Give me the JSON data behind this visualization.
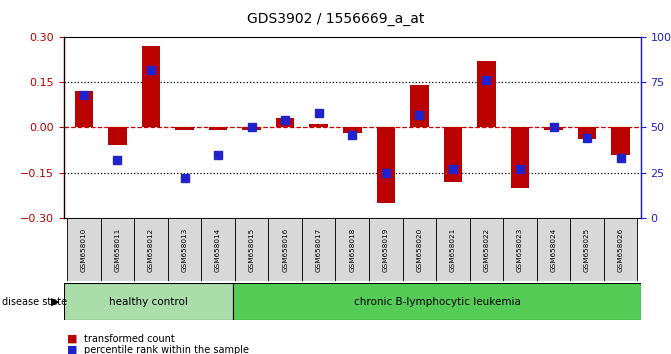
{
  "title": "GDS3902 / 1556669_a_at",
  "samples": [
    "GSM658010",
    "GSM658011",
    "GSM658012",
    "GSM658013",
    "GSM658014",
    "GSM658015",
    "GSM658016",
    "GSM658017",
    "GSM658018",
    "GSM658019",
    "GSM658020",
    "GSM658021",
    "GSM658022",
    "GSM658023",
    "GSM658024",
    "GSM658025",
    "GSM658026"
  ],
  "red_values": [
    0.12,
    -0.06,
    0.27,
    -0.01,
    -0.01,
    -0.01,
    0.03,
    0.01,
    -0.02,
    -0.25,
    0.14,
    -0.18,
    0.22,
    -0.2,
    -0.01,
    -0.04,
    -0.09
  ],
  "blue_values_pct": [
    68,
    32,
    82,
    22,
    35,
    50,
    54,
    58,
    46,
    25,
    57,
    27,
    76,
    27,
    50,
    44,
    33
  ],
  "ylim_left": [
    -0.3,
    0.3
  ],
  "ylim_right": [
    0,
    100
  ],
  "yticks_left": [
    -0.3,
    -0.15,
    0.0,
    0.15,
    0.3
  ],
  "yticks_right": [
    0,
    25,
    50,
    75,
    100
  ],
  "ytick_labels_right": [
    "0",
    "25",
    "50",
    "75",
    "100%"
  ],
  "healthy_count": 5,
  "healthy_label": "healthy control",
  "disease_label": "chronic B-lymphocytic leukemia",
  "legend_red": "transformed count",
  "legend_blue": "percentile rank within the sample",
  "disease_state_label": "disease state",
  "bar_color_red": "#bb0000",
  "bar_color_blue": "#2222cc",
  "bg_plot": "#ffffff",
  "bg_label_area": "#d8d8d8",
  "bg_healthy": "#aaddaa",
  "bg_disease": "#55cc55",
  "zero_line_color": "#cc0000",
  "bar_width": 0.55,
  "blue_marker_size": 6
}
